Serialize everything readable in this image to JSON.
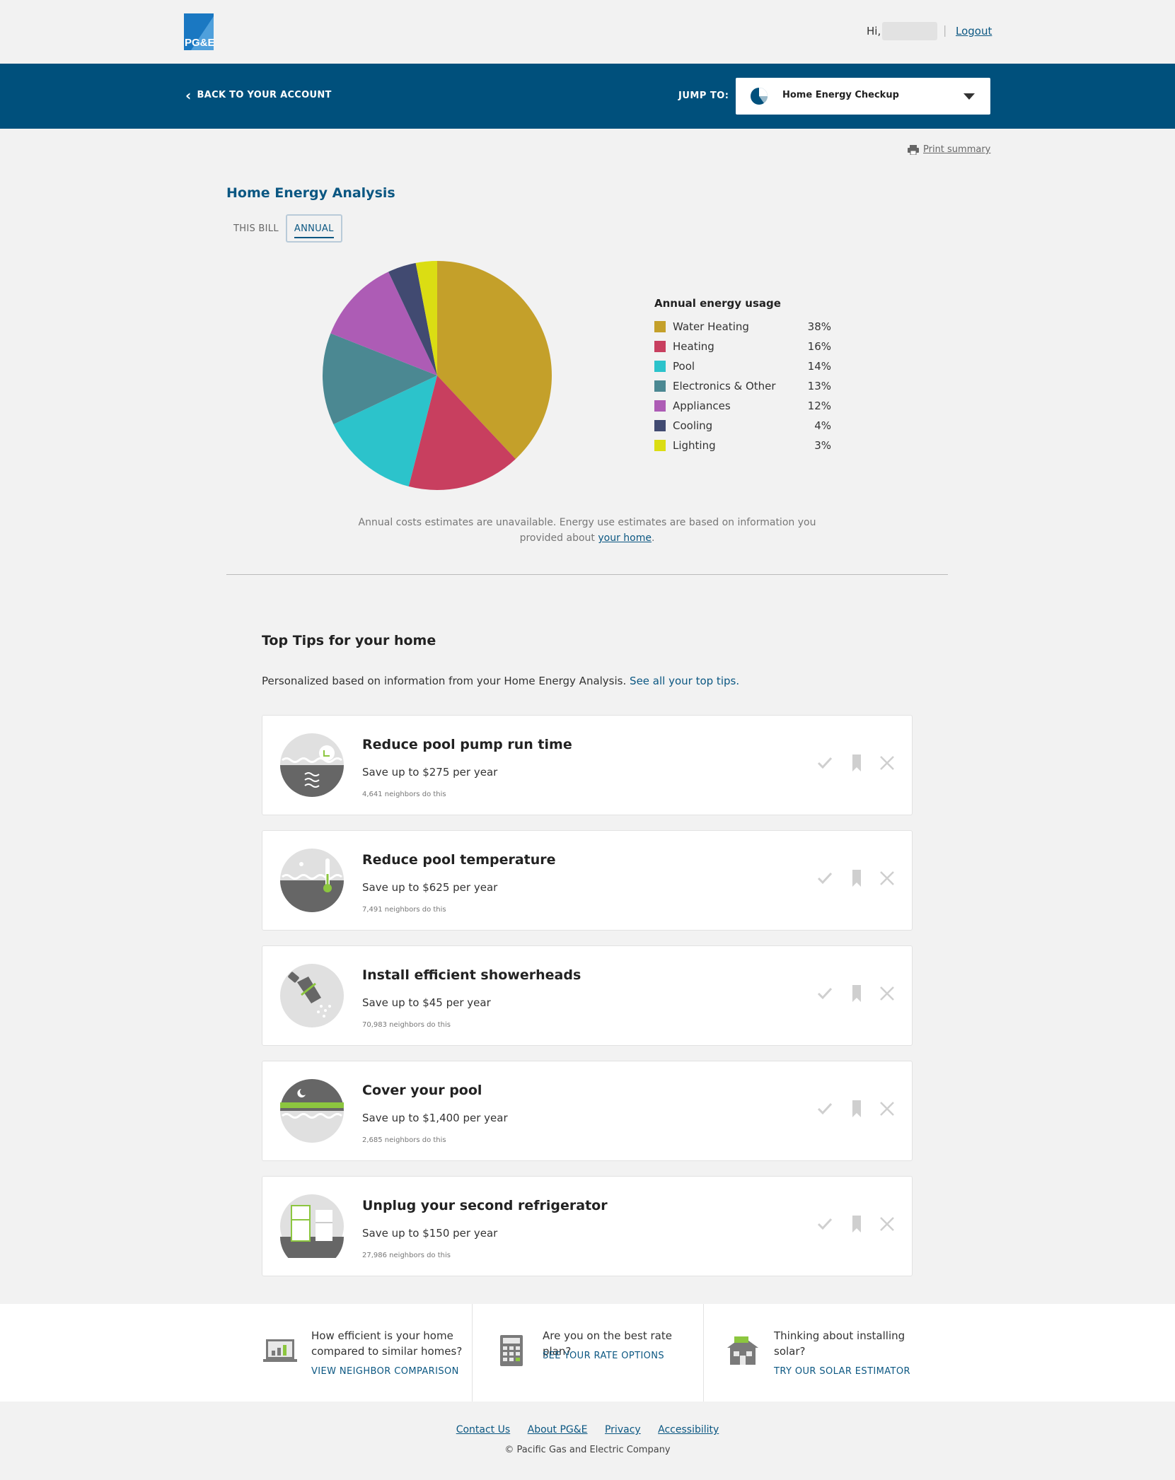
{
  "header": {
    "greeting": "Hi,",
    "logout": "Logout",
    "logo_text": "PG&E"
  },
  "nav": {
    "back": "BACK TO YOUR ACCOUNT",
    "jump_label": "JUMP TO:",
    "jump_value": "Home Energy Checkup"
  },
  "print_label": "Print summary",
  "analysis": {
    "title": "Home Energy Analysis",
    "tabs": [
      "THIS BILL",
      "ANNUAL"
    ],
    "active_tab": "ANNUAL",
    "note_text": "Annual costs estimates are unavailable. Energy use estimates are based on information you provided about",
    "note_link": "your home",
    "note_end": "."
  },
  "chart_data": {
    "type": "pie",
    "title": "Annual energy usage",
    "slices": [
      {
        "label": "Water Heating",
        "value": 38,
        "color": "#c4a02a"
      },
      {
        "label": "Heating",
        "value": 16,
        "color": "#c83f5f"
      },
      {
        "label": "Pool",
        "value": 14,
        "color": "#2cc3cb"
      },
      {
        "label": "Electronics & Other",
        "value": 13,
        "color": "#4b8892"
      },
      {
        "label": "Appliances",
        "value": 12,
        "color": "#ad5cb5"
      },
      {
        "label": "Cooling",
        "value": 4,
        "color": "#414a71"
      },
      {
        "label": "Lighting",
        "value": 3,
        "color": "#dbdd13"
      }
    ],
    "value_suffix": "%"
  },
  "tips": {
    "title": "Top Tips for your home",
    "subtitle": "Personalized based on information from your Home Energy Analysis.",
    "subtitle_link": "See all your top tips.",
    "items": [
      {
        "title": "Reduce pool pump run time",
        "save": "Save up to $275 per year",
        "neighbors": "4,641 neighbors do this",
        "icon": "pool-pump-icon"
      },
      {
        "title": "Reduce pool temperature",
        "save": "Save up to $625 per year",
        "neighbors": "7,491 neighbors do this",
        "icon": "pool-thermometer-icon"
      },
      {
        "title": "Install efficient showerheads",
        "save": "Save up to $45 per year",
        "neighbors": "70,983 neighbors do this",
        "icon": "showerhead-icon"
      },
      {
        "title": "Cover your pool",
        "save": "Save up to $1,400 per year",
        "neighbors": "2,685 neighbors do this",
        "icon": "pool-cover-icon"
      },
      {
        "title": "Unplug your second refrigerator",
        "save": "Save up to $150 per year",
        "neighbors": "27,986 neighbors do this",
        "icon": "refrigerator-icon"
      }
    ]
  },
  "promos": [
    {
      "question": "How efficient is your home compared to similar homes?",
      "link": "VIEW NEIGHBOR COMPARISON",
      "icon": "laptop-chart-icon"
    },
    {
      "question": "Are you on the best rate plan?",
      "link": "SEE YOUR RATE OPTIONS",
      "icon": "calculator-icon"
    },
    {
      "question": "Thinking about installing solar?",
      "link": "TRY OUR SOLAR ESTIMATOR",
      "icon": "solar-house-icon"
    }
  ],
  "footer": {
    "links": [
      "Contact Us",
      "About PG&E",
      "Privacy",
      "Accessibility"
    ],
    "copyright": "© Pacific Gas and Electric Company"
  }
}
